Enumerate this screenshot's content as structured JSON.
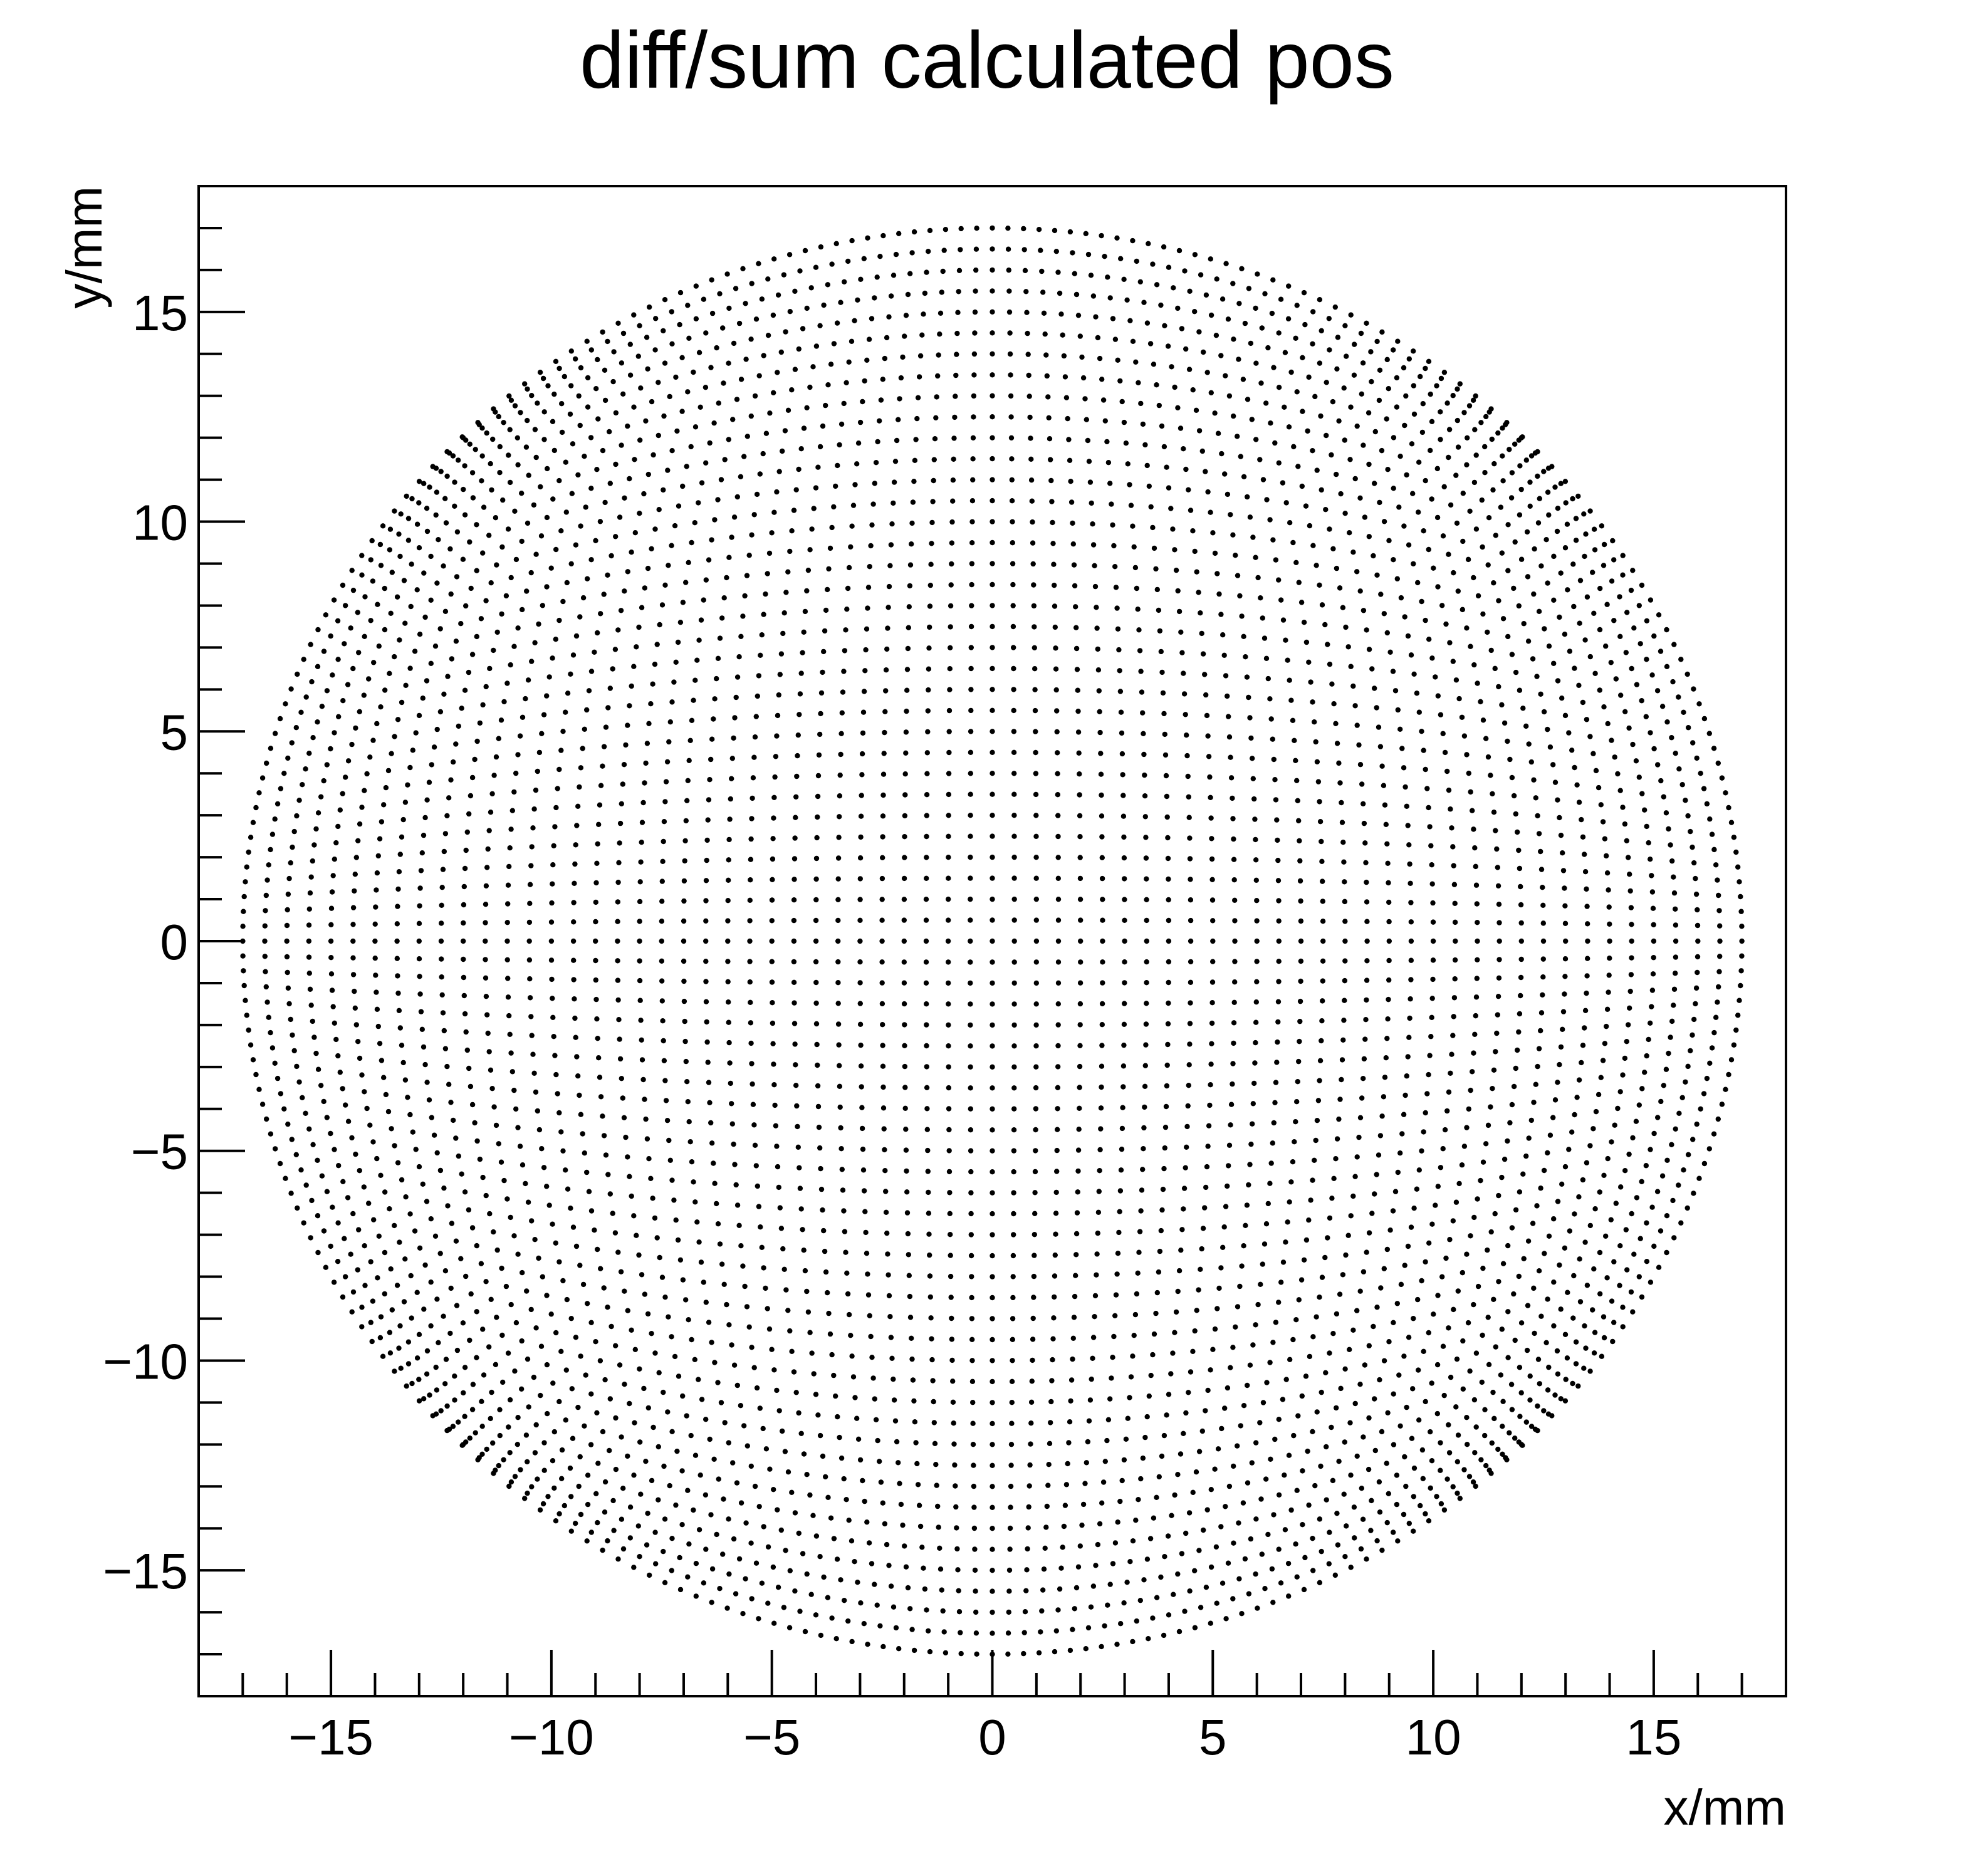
{
  "chart_data": {
    "type": "scatter",
    "title": "diff/sum calculated pos",
    "xlabel": "x/mm",
    "ylabel": "y/mm",
    "xlim": [
      -18,
      18
    ],
    "ylim": [
      -18,
      18
    ],
    "x_ticks": [
      -15,
      -10,
      -5,
      0,
      5,
      10,
      15
    ],
    "y_ticks": [
      -15,
      -10,
      -5,
      0,
      5,
      10,
      15
    ],
    "x_tick_labels": [
      "−15",
      "−10",
      "−5",
      "0",
      "5",
      "10",
      "15"
    ],
    "y_tick_labels": [
      "−15",
      "−10",
      "−5",
      "0",
      "5",
      "10",
      "15"
    ],
    "grid": false,
    "legend": "none",
    "marker_color": "#000000",
    "series": [
      {
        "description_of_points": "square grid of points warped by diff/sum position reconstruction",
        "grid_steps_per_side": 69,
        "extent_mm": 17
      }
    ]
  }
}
